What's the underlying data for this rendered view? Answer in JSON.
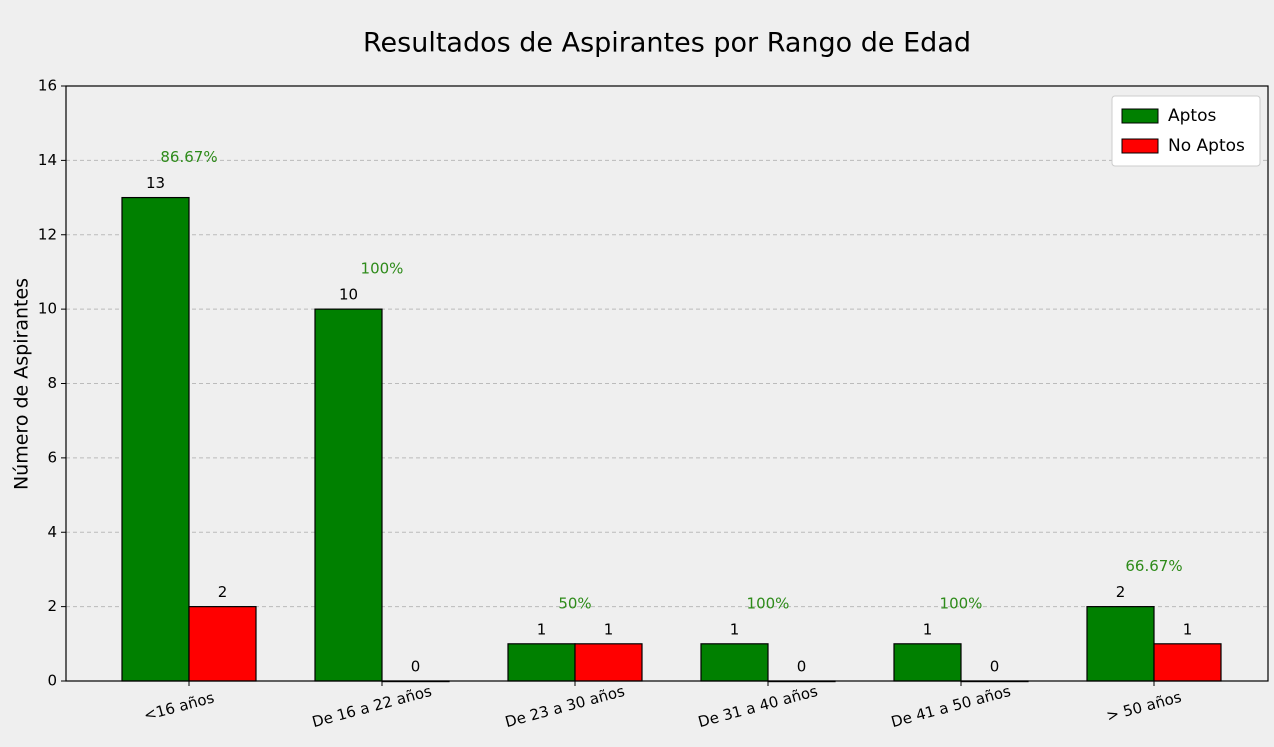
{
  "chart_data": {
    "type": "bar",
    "title": "Resultados de Aspirantes por Rango de Edad",
    "ylabel": "Número de Aspirantes",
    "categories": [
      "<16 años",
      "De 16 a 22 años",
      "De 23 a 30 años",
      "De 31 a 40 años",
      "De 41 a 50 años",
      "> 50 años"
    ],
    "series": [
      {
        "name": "Aptos",
        "color": "#008000",
        "values": [
          13,
          10,
          1,
          1,
          1,
          2
        ]
      },
      {
        "name": "No Aptos",
        "color": "#ff0000",
        "values": [
          2,
          0,
          1,
          0,
          0,
          1
        ]
      }
    ],
    "annotations": [
      "86.67%",
      "100%",
      "50%",
      "100%",
      "100%",
      "66.67%"
    ],
    "annotation_color": "#2e8b1a",
    "ylim": [
      0,
      16
    ],
    "yticks": [
      0,
      2,
      4,
      6,
      8,
      10,
      12,
      14,
      16
    ],
    "grid": true,
    "legend": "upper right"
  }
}
